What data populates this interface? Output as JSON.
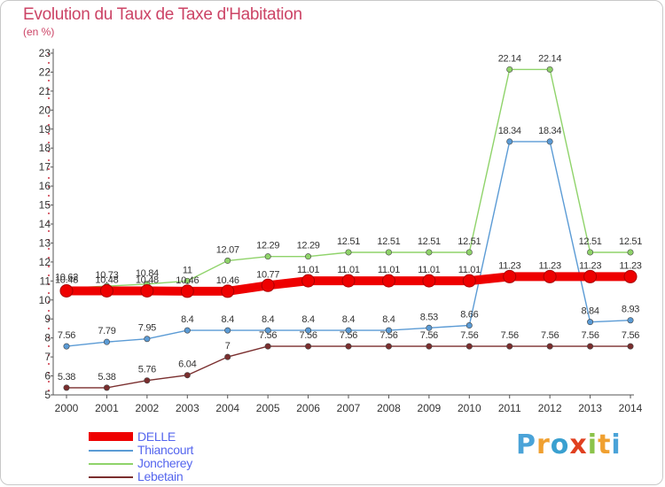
{
  "title": "Evolution du Taux de Taxe d'Habitation",
  "subtitle": "(en %)",
  "logo": {
    "p": "P",
    "r": "r",
    "o": "o",
    "x": "x",
    "i1": "i",
    "t": "t",
    "i2": "i"
  },
  "chart_data": {
    "type": "line",
    "title": "Evolution du Taux de Taxe d'Habitation",
    "ylabel": "(en %)",
    "xlabel": "",
    "categories": [
      "2000",
      "2001",
      "2002",
      "2003",
      "2004",
      "2005",
      "2006",
      "2007",
      "2008",
      "2009",
      "2010",
      "2011",
      "2012",
      "2013",
      "2014"
    ],
    "ylim": [
      5,
      23
    ],
    "yticks": [
      5,
      6,
      7,
      8,
      9,
      10,
      11,
      12,
      13,
      14,
      15,
      16,
      17,
      18,
      19,
      20,
      21,
      22,
      23
    ],
    "grid": false,
    "legend_position": "bottom-left",
    "series": [
      {
        "name": "DELLE",
        "color": "#ee0000",
        "values": [
          10.48,
          10.48,
          10.48,
          10.46,
          10.46,
          10.77,
          11.01,
          11.01,
          11.01,
          11.01,
          11.01,
          11.23,
          11.23,
          11.23,
          11.23
        ],
        "labels": [
          "10.48",
          "10.48",
          "10.48",
          "10.46",
          "10.46",
          "10.77",
          "11.01",
          "11.01",
          "11.01",
          "11.01",
          "11.01",
          "11.23",
          "11.23",
          "11.23",
          "11.23"
        ]
      },
      {
        "name": "Thiancourt",
        "color": "#5b9bd5",
        "values": [
          7.56,
          7.79,
          7.95,
          8.4,
          8.4,
          8.4,
          8.4,
          8.4,
          8.4,
          8.53,
          8.66,
          18.34,
          18.34,
          8.84,
          8.93
        ],
        "labels": [
          "7.56",
          "7.79",
          "7.95",
          "8.4",
          "8.4",
          "8.4",
          "8.4",
          "8.4",
          "8.4",
          "8.53",
          "8.66",
          "18.34",
          "18.34",
          "8.84",
          "8.93"
        ]
      },
      {
        "name": "Joncherey",
        "color": "#8fd36a",
        "values": [
          10.62,
          10.73,
          10.84,
          11,
          12.07,
          12.29,
          12.29,
          12.51,
          12.51,
          12.51,
          12.51,
          22.14,
          22.14,
          12.51,
          12.51
        ],
        "labels": [
          "10.62",
          "10.73",
          "10.84",
          "11",
          "12.07",
          "12.29",
          "12.29",
          "12.51",
          "12.51",
          "12.51",
          "12.51",
          "22.14",
          "22.14",
          "12.51",
          "12.51"
        ]
      },
      {
        "name": "Lebetain",
        "color": "#7a2e2e",
        "values": [
          5.38,
          5.38,
          5.76,
          6.04,
          7,
          7.56,
          7.56,
          7.56,
          7.56,
          7.56,
          7.56,
          7.56,
          7.56,
          7.56,
          7.56
        ],
        "labels": [
          "5.38",
          "5.38",
          "5.76",
          "6.04",
          "7",
          "7.56",
          "7.56",
          "7.56",
          "7.56",
          "7.56",
          "7.56",
          "7.56",
          "7.56",
          "7.56",
          "7.56"
        ]
      }
    ]
  }
}
